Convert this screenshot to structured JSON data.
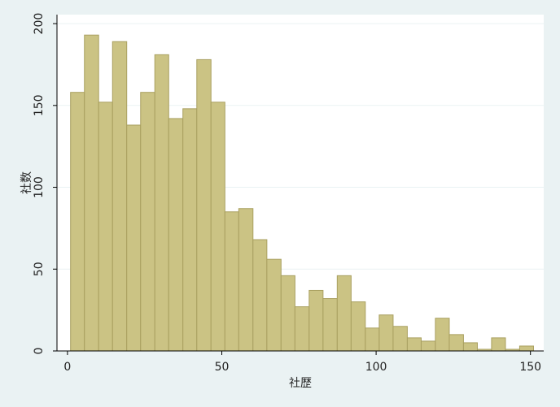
{
  "chart_data": {
    "type": "histogram",
    "x_label": "社歴",
    "y_label": "社数",
    "bins": [
      1,
      5.5,
      10.1,
      14.6,
      19.2,
      23.7,
      28.3,
      32.8,
      37.4,
      41.9,
      46.5,
      51,
      55.5,
      60.1,
      64.6,
      69.2,
      73.7,
      78.3,
      82.8,
      87.4,
      91.9,
      96.5,
      101,
      105.5,
      110.1,
      114.6,
      119.2,
      123.7,
      128.3,
      132.8,
      137.4,
      141.9,
      146.5,
      151
    ],
    "values": [
      158,
      193,
      152,
      189,
      138,
      158,
      181,
      142,
      148,
      178,
      152,
      85,
      87,
      68,
      56,
      46,
      27,
      37,
      32,
      46,
      30,
      14,
      22,
      15,
      8,
      6,
      20,
      10,
      5,
      1,
      8,
      1,
      3
    ],
    "color": "#cbc384",
    "xlim": [
      -3.4,
      154.3
    ],
    "ylim": [
      0,
      205.5
    ],
    "xticks": [
      0,
      50,
      100,
      150
    ],
    "yticks": [
      0,
      50,
      100,
      150,
      200
    ],
    "grid": true
  }
}
